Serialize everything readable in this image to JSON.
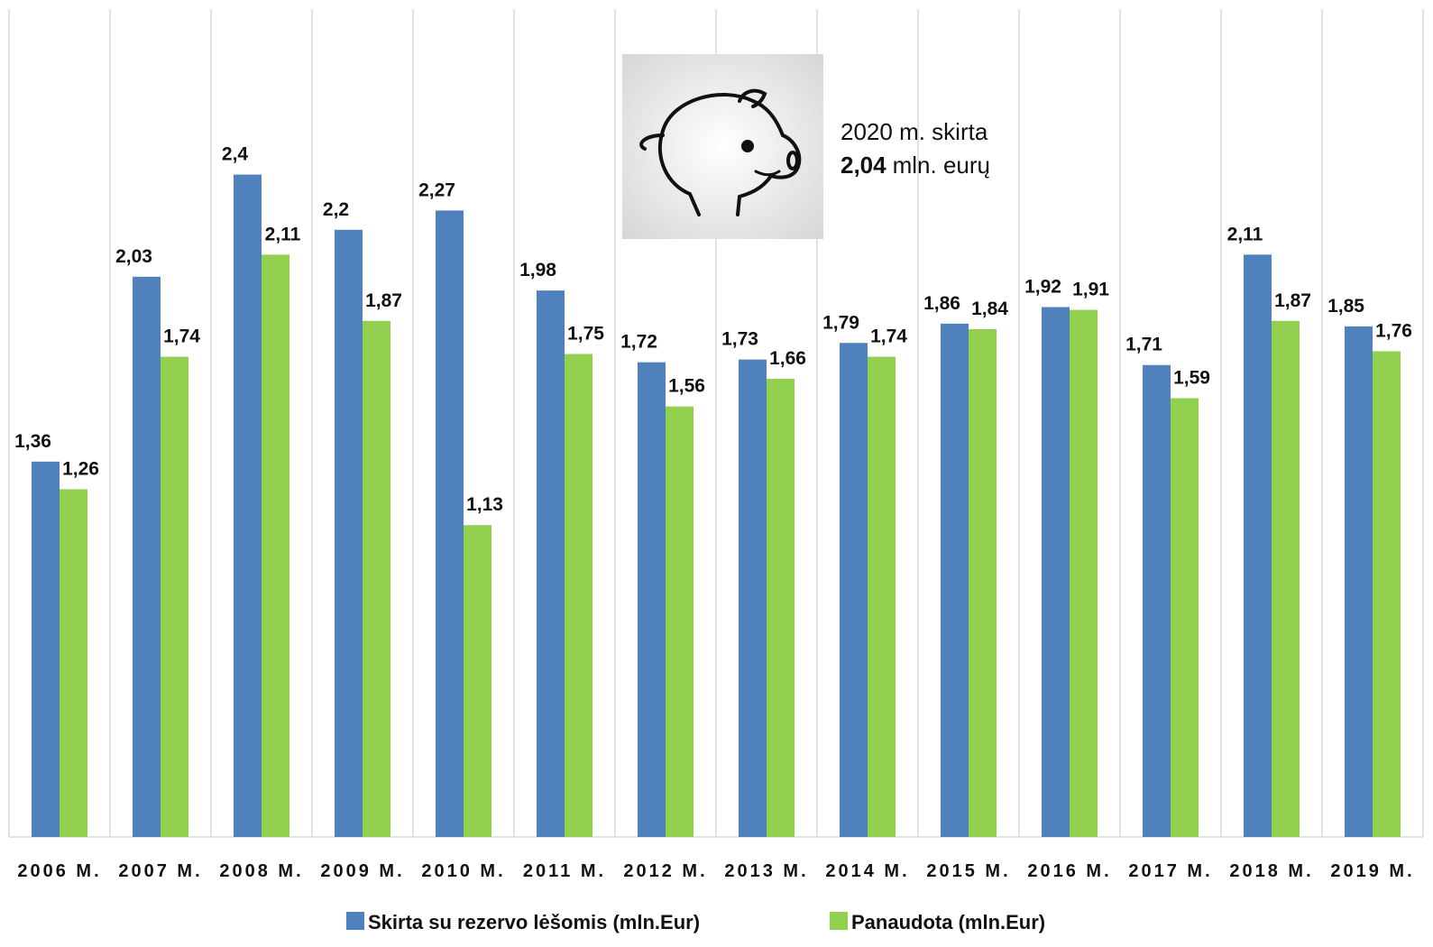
{
  "chart_data": {
    "type": "bar",
    "categories": [
      "2006 M.",
      "2007 M.",
      "2008 M.",
      "2009 M.",
      "2010 M.",
      "2011 M.",
      "2012 M.",
      "2013 M.",
      "2014 M.",
      "2015 M.",
      "2016 M.",
      "2017 M.",
      "2018 M.",
      "2019 M."
    ],
    "series": [
      {
        "name": "Skirta su rezervo lėšomis (mln.Eur)",
        "color": "#4f81bd",
        "values": [
          1.36,
          2.03,
          2.4,
          2.2,
          2.27,
          1.98,
          1.72,
          1.73,
          1.79,
          1.86,
          1.92,
          1.71,
          2.11,
          1.85
        ],
        "value_labels": [
          "1,36",
          "2,03",
          "2,4",
          "2,2",
          "2,27",
          "1,98",
          "1,72",
          "1,73",
          "1,79",
          "1,86",
          "1,92",
          "1,71",
          "2,11",
          "1,85"
        ]
      },
      {
        "name": "Panaudota (mln.Eur)",
        "color": "#92d050",
        "values": [
          1.26,
          1.74,
          2.11,
          1.87,
          1.13,
          1.75,
          1.56,
          1.66,
          1.74,
          1.84,
          1.91,
          1.59,
          1.87,
          1.76
        ],
        "value_labels": [
          "1,26",
          "1,74",
          "2,11",
          "1,87",
          "1,13",
          "1,75",
          "1,56",
          "1,66",
          "1,74",
          "1,84",
          "1,91",
          "1,59",
          "1,87",
          "1,76"
        ]
      }
    ],
    "ylim": [
      0,
      3
    ],
    "annotation": {
      "text": "2020 m. skirta",
      "value": "2,04",
      "unit": "mln. eurų"
    }
  }
}
